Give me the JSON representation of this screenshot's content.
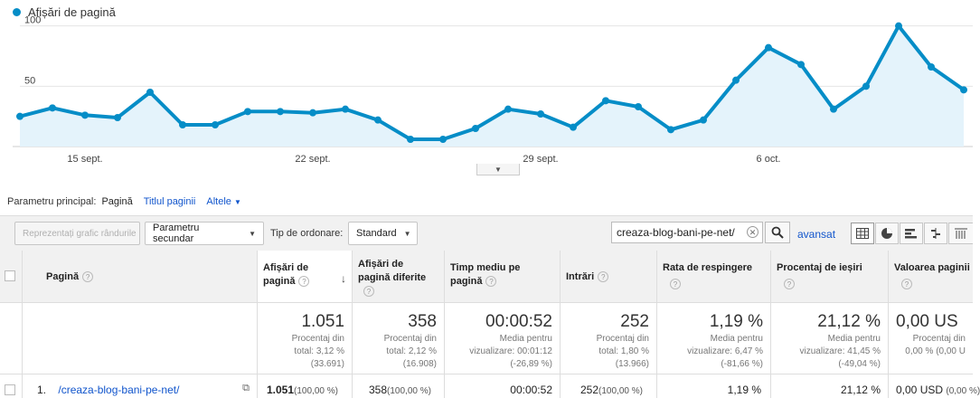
{
  "chart": {
    "legend_label": "Afișări de pagină",
    "series_color": "#058dc7"
  },
  "chart_data": {
    "type": "area",
    "series": [
      {
        "name": "Afișări de pagină",
        "values": [
          25,
          32,
          26,
          24,
          45,
          18,
          18,
          29,
          29,
          28,
          31,
          22,
          6,
          6,
          15,
          31,
          27,
          16,
          38,
          33,
          14,
          22,
          55,
          82,
          68,
          31,
          50,
          100,
          66,
          47
        ]
      }
    ],
    "yticks": [
      50,
      100
    ],
    "ylim": [
      0,
      105
    ],
    "xtick_labels": [
      "15 sept.",
      "22 sept.",
      "29 sept.",
      "6 oct."
    ],
    "xtick_index": [
      2,
      9,
      16,
      23
    ]
  },
  "dimension": {
    "label": "Parametru principal:",
    "selected": "Pagină",
    "option2": "Titlul paginii",
    "more": "Altele"
  },
  "toolbar": {
    "plot_rows": "Reprezentați grafic rândurile",
    "secondary": "Parametru secundar",
    "sort_label": "Tip de ordonare:",
    "sort_value": "Standard",
    "search_value": "creaza-blog-bani-pe-net/",
    "advanced": "avansat"
  },
  "table": {
    "headers": {
      "page": "Pagină",
      "pageviews": [
        "Afișări de",
        "pagină"
      ],
      "unique": [
        "Afișări de",
        "pagină diferite"
      ],
      "time": [
        "Timp mediu pe",
        "pagină"
      ],
      "entrances": "Intrări",
      "bounce": "Rata de respingere",
      "exit": "Procentaj de ieșiri",
      "value": "Valoarea paginii"
    },
    "help": "?",
    "totals": {
      "pageviews": {
        "big": "1.051",
        "l1": "Procentaj din",
        "l2": "total: 3,12 %",
        "l3": "(33.691)"
      },
      "unique": {
        "big": "358",
        "l1": "Procentaj din",
        "l2": "total: 2,12 %",
        "l3": "(16.908)"
      },
      "time": {
        "big": "00:00:52",
        "l1": "Media pentru",
        "l2": "vizualizare: 00:01:12",
        "l3": "(-26,89 %)"
      },
      "entrances": {
        "big": "252",
        "l1": "Procentaj din",
        "l2": "total: 1,80 %",
        "l3": "(13.966)"
      },
      "bounce": {
        "big": "1,19 %",
        "l1": "Media pentru",
        "l2": "vizualizare: 6,47 %",
        "l3": "(-81,66 %)"
      },
      "exit": {
        "big": "21,12 %",
        "l1": "Media pentru",
        "l2": "vizualizare: 41,45 %",
        "l3": "(-49,04 %)"
      },
      "value": {
        "big": "0,00 US",
        "l1": "Procentaj din",
        "l2": "0,00 % (0,00 U"
      }
    },
    "row1": {
      "index": "1.",
      "page": "/creaza-blog-bani-pe-net/",
      "pageviews": "1.051",
      "pageviews_pct": "(100,00 %)",
      "unique": "358",
      "unique_pct": "(100,00 %)",
      "time": "00:00:52",
      "entrances": "252",
      "entrances_pct": "(100,00 %)",
      "bounce": "1,19 %",
      "exit": "21,12 %",
      "value": "0,00 USD",
      "value_pct": "(0,00 %)"
    }
  }
}
